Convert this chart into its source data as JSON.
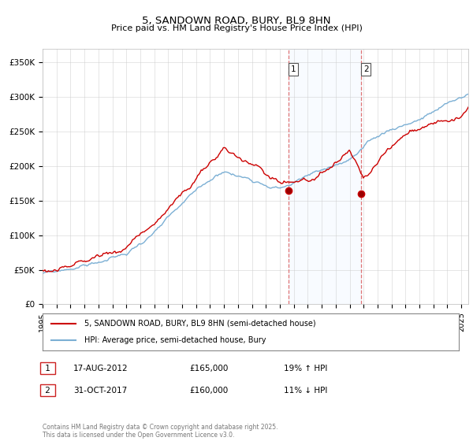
{
  "title": "5, SANDOWN ROAD, BURY, BL9 8HN",
  "subtitle": "Price paid vs. HM Land Registry's House Price Index (HPI)",
  "ylabel_ticks": [
    "£0",
    "£50K",
    "£100K",
    "£150K",
    "£200K",
    "£250K",
    "£300K",
    "£350K"
  ],
  "ytick_values": [
    0,
    50000,
    100000,
    150000,
    200000,
    250000,
    300000,
    350000
  ],
  "ylim": [
    0,
    370000
  ],
  "xlim_start": 1995.0,
  "xlim_end": 2025.5,
  "red_color": "#cc0000",
  "blue_color": "#7bafd4",
  "shaded_color": "#ddeeff",
  "dashed_color": "#dd6666",
  "marker1_x": 2012.63,
  "marker1_y": 165000,
  "marker2_x": 2017.83,
  "marker2_y": 160000,
  "legend_label_red": "5, SANDOWN ROAD, BURY, BL9 8HN (semi-detached house)",
  "legend_label_blue": "HPI: Average price, semi-detached house, Bury",
  "annotation1_label": "1",
  "annotation1_date": "17-AUG-2012",
  "annotation1_price": "£165,000",
  "annotation1_hpi": "19% ↑ HPI",
  "annotation2_label": "2",
  "annotation2_date": "31-OCT-2017",
  "annotation2_price": "£160,000",
  "annotation2_hpi": "11% ↓ HPI",
  "footer": "Contains HM Land Registry data © Crown copyright and database right 2025.\nThis data is licensed under the Open Government Licence v3.0.",
  "grid_color": "#cccccc",
  "label1_box_color": "#cc2222",
  "label2_box_color": "#cc2222"
}
